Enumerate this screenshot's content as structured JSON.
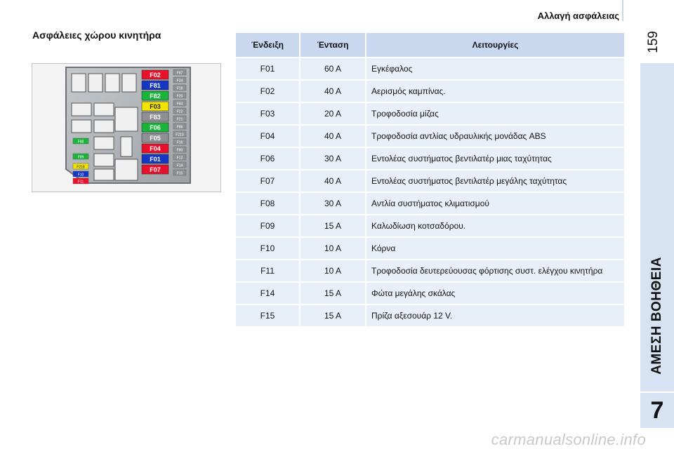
{
  "header": {
    "title": "Αλλαγή ασφάλειας",
    "page_number": "159"
  },
  "sidebar": {
    "chapter_title": "ΑΜΕΣΗ ΒΟΗΘΕΙΑ",
    "chapter_number": "7"
  },
  "section": {
    "title": "Ασφάλειες χώρου κινητήρα"
  },
  "fuse_box": {
    "main_labels": [
      {
        "label": "F02",
        "color": "#e8102a"
      },
      {
        "label": "F81",
        "color": "#1536c2"
      },
      {
        "label": "F82",
        "color": "#19b43a"
      },
      {
        "label": "F03",
        "color": "#f2e400"
      },
      {
        "label": "F83",
        "color": "#8e9193"
      },
      {
        "label": "F06",
        "color": "#19b43a"
      },
      {
        "label": "F05",
        "color": "#8e9193"
      },
      {
        "label": "F04",
        "color": "#e8102a"
      },
      {
        "label": "F01",
        "color": "#1536c2"
      },
      {
        "label": "F07",
        "color": "#e8102a"
      }
    ],
    "small_right": [
      "F87",
      "F24",
      "F18",
      "F20",
      "F84",
      "F22",
      "F21",
      "F86",
      "F210",
      "F16",
      "F80",
      "F12",
      "F14",
      "F15"
    ],
    "small_left": [
      "F88",
      "F89",
      "F218",
      "F10",
      "F11"
    ]
  },
  "table": {
    "headers": [
      "Ένδειξη",
      "Ένταση",
      "Λειτουργίες"
    ],
    "rows": [
      {
        "code": "F01",
        "amp": "60 A",
        "function": "Εγκέφαλος"
      },
      {
        "code": "F02",
        "amp": "40 A",
        "function": "Αερισμός καμπίνας."
      },
      {
        "code": "F03",
        "amp": "20 A",
        "function": "Τροφοδοσία μίζας"
      },
      {
        "code": "F04",
        "amp": "40 A",
        "function": "Τροφοδοσία αντλίας υδραυλικής μονάδας ABS"
      },
      {
        "code": "F06",
        "amp": "30 A",
        "function": "Εντολέας συστήματος βεντιλατέρ μιας ταχύτητας"
      },
      {
        "code": "F07",
        "amp": "40 A",
        "function": "Εντολέας συστήματος βεντιλατέρ μεγάλης ταχύτητας"
      },
      {
        "code": "F08",
        "amp": "30 A",
        "function": "Αντλία συστήματος κλιματισμού"
      },
      {
        "code": "F09",
        "amp": "15 A",
        "function": "Καλωδίωση κοτσαδόρου."
      },
      {
        "code": "F10",
        "amp": "10 A",
        "function": "Κόρνα"
      },
      {
        "code": "F11",
        "amp": "10 A",
        "function": "Τροφοδοσία δευτερεύουσας φόρτισης συστ. ελέγχου κινητήρα"
      },
      {
        "code": "F14",
        "amp": "15 A",
        "function": "Φώτα μεγάλης σκάλας"
      },
      {
        "code": "F15",
        "amp": "15 A",
        "function": "Πρίζα αξεσουάρ 12 V."
      }
    ]
  },
  "watermark": "carmanualsonline.info"
}
